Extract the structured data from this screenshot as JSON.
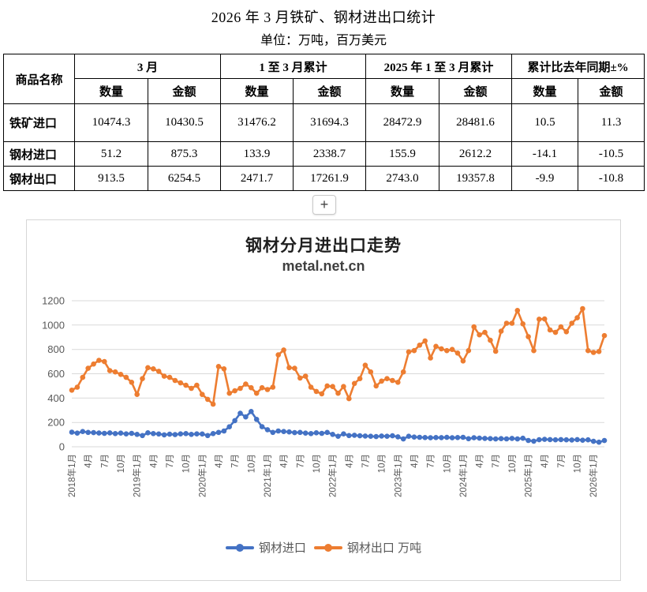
{
  "page": {
    "title": "2026 年 3 月铁矿、钢材进出口统计",
    "subtitle": "单位：万吨，百万美元"
  },
  "table": {
    "corner_header": "商品名称",
    "groups": [
      {
        "label": "3 月"
      },
      {
        "label": "1 至 3 月累计"
      },
      {
        "label": "2025 年 1 至 3 月累计"
      },
      {
        "label": "累计比去年同期±%"
      }
    ],
    "sub_headers": [
      "数量",
      "金额",
      "数量",
      "金额",
      "数量",
      "金额",
      "数量",
      "金额"
    ],
    "rows": [
      {
        "name": "铁矿进口",
        "values": [
          "10474.3",
          "10430.5",
          "31476.2",
          "31694.3",
          "28472.9",
          "28481.6",
          "10.5",
          "11.3"
        ]
      },
      {
        "name": "钢材进口",
        "values": [
          "51.2",
          "875.3",
          "133.9",
          "2338.7",
          "155.9",
          "2612.2",
          "-14.1",
          "-10.5"
        ]
      },
      {
        "name": "钢材出口",
        "values": [
          "913.5",
          "6254.5",
          "2471.7",
          "17261.9",
          "2743.0",
          "19357.8",
          "-9.9",
          "-10.8"
        ]
      }
    ]
  },
  "expand_button": {
    "label": "+"
  },
  "chart_data": {
    "type": "line",
    "title": "钢材分月进出口走势",
    "subtitle": "metal.net.cn",
    "xlabel": "",
    "ylabel": "",
    "ylim": [
      0,
      1200
    ],
    "y_ticks": [
      0,
      200,
      400,
      600,
      800,
      1000,
      1200
    ],
    "grid": true,
    "legend_position": "bottom",
    "x_start_month": "2018-01",
    "x_end_month": "2026-03",
    "x_label_every": 3,
    "x_labels": [
      "2018年1月",
      "4月",
      "7月",
      "10月",
      "2019年1月",
      "4月",
      "7月",
      "10月",
      "2020年1月",
      "4月",
      "7月",
      "10月",
      "2021年1月",
      "4月",
      "7月",
      "10月",
      "2022年1月",
      "4月",
      "7月",
      "10月",
      "2023年1月",
      "4月",
      "7月",
      "10月",
      "2024年1月",
      "4月",
      "7月",
      "10月",
      "2025年1月",
      "4月",
      "7月",
      "10月",
      "2026年1月"
    ],
    "series": [
      {
        "name": "钢材进口",
        "color": "#4472C4",
        "values": [
          120,
          112,
          125,
          118,
          116,
          113,
          110,
          114,
          108,
          112,
          106,
          110,
          102,
          92,
          115,
          108,
          105,
          98,
          103,
          100,
          106,
          108,
          102,
          106,
          105,
          92,
          108,
          118,
          130,
          164,
          215,
          275,
          245,
          290,
          225,
          165,
          140,
          118,
          130,
          125,
          122,
          116,
          118,
          112,
          108,
          115,
          110,
          118,
          102,
          86,
          106,
          92,
          95,
          90,
          88,
          86,
          84,
          88,
          86,
          90,
          82,
          64,
          86,
          80,
          78,
          76,
          74,
          76,
          75,
          77,
          74,
          76,
          78,
          66,
          74,
          71,
          69,
          67,
          64,
          67,
          65,
          69,
          64,
          70,
          52,
          46,
          57.9,
          61,
          59,
          57,
          59,
          57,
          56,
          59,
          54,
          57,
          45,
          37.7,
          51.2
        ]
      },
      {
        "name": "钢材出口 万吨",
        "color": "#ED7D31",
        "values": [
          465,
          490,
          570,
          645,
          680,
          710,
          700,
          625,
          615,
          595,
          570,
          530,
          430,
          560,
          650,
          640,
          620,
          580,
          570,
          545,
          525,
          505,
          480,
          505,
          430,
          390,
          350,
          660,
          640,
          440,
          460,
          480,
          515,
          485,
          440,
          485,
          470,
          490,
          755,
          795,
          650,
          645,
          565,
          580,
          490,
          455,
          435,
          500,
          495,
          440,
          495,
          395,
          520,
          560,
          670,
          615,
          500,
          540,
          560,
          545,
          530,
          615,
          780,
          790,
          835,
          870,
          730,
          825,
          805,
          790,
          800,
          770,
          705,
          790,
          985,
          920,
          940,
          875,
          785,
          950,
          1015,
          1015,
          1120,
          1010,
          905,
          790,
          1048,
          1050,
          960,
          940,
          985,
          945,
          1015,
          1060,
          1135,
          790,
          775,
          783.2,
          913.5
        ]
      }
    ]
  }
}
